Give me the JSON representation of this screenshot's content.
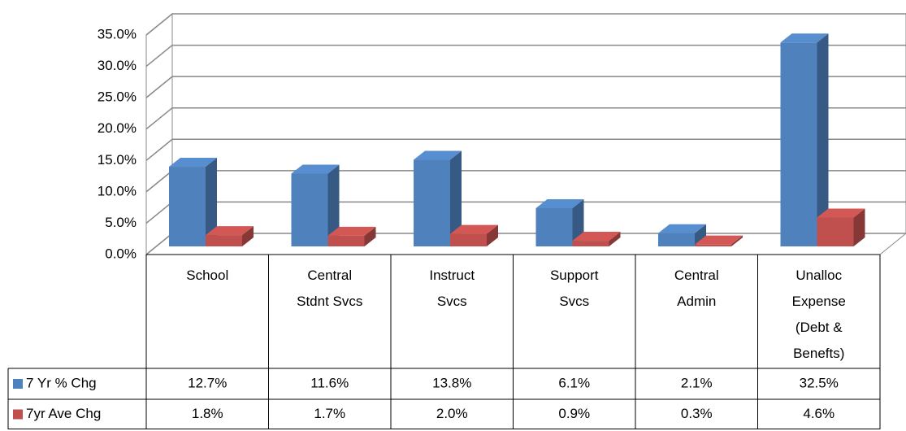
{
  "chart_data": {
    "type": "bar3d",
    "categories": [
      "School",
      "Central Stdnt Svcs",
      "Instruct Svcs",
      "Support Svcs",
      "Central Admin",
      "Unalloc Expense (Debt & Benefts)"
    ],
    "series": [
      {
        "name": "7 Yr % Chg",
        "color": "#4f81bd",
        "values": [
          12.7,
          11.6,
          13.8,
          6.1,
          2.1,
          32.5
        ],
        "value_labels": [
          "12.7%",
          "11.6%",
          "13.8%",
          "6.1%",
          "2.1%",
          "32.5%"
        ]
      },
      {
        "name": "7yr Ave Chg",
        "color": "#c0504d",
        "values": [
          1.8,
          1.7,
          2.0,
          0.9,
          0.3,
          4.6
        ],
        "value_labels": [
          "1.8%",
          "1.7%",
          "2.0%",
          "0.9%",
          "0.3%",
          "4.6%"
        ]
      }
    ],
    "ylim": [
      0,
      35
    ],
    "yticks": [
      {
        "value": 0,
        "label": "0.0%"
      },
      {
        "value": 5,
        "label": "5.0%"
      },
      {
        "value": 10,
        "label": "10.0%"
      },
      {
        "value": 15,
        "label": "15.0%"
      },
      {
        "value": 20,
        "label": "20.0%"
      },
      {
        "value": 25,
        "label": "25.0%"
      },
      {
        "value": 30,
        "label": "30.0%"
      },
      {
        "value": 35,
        "label": "35.0%"
      }
    ],
    "grid": true
  }
}
